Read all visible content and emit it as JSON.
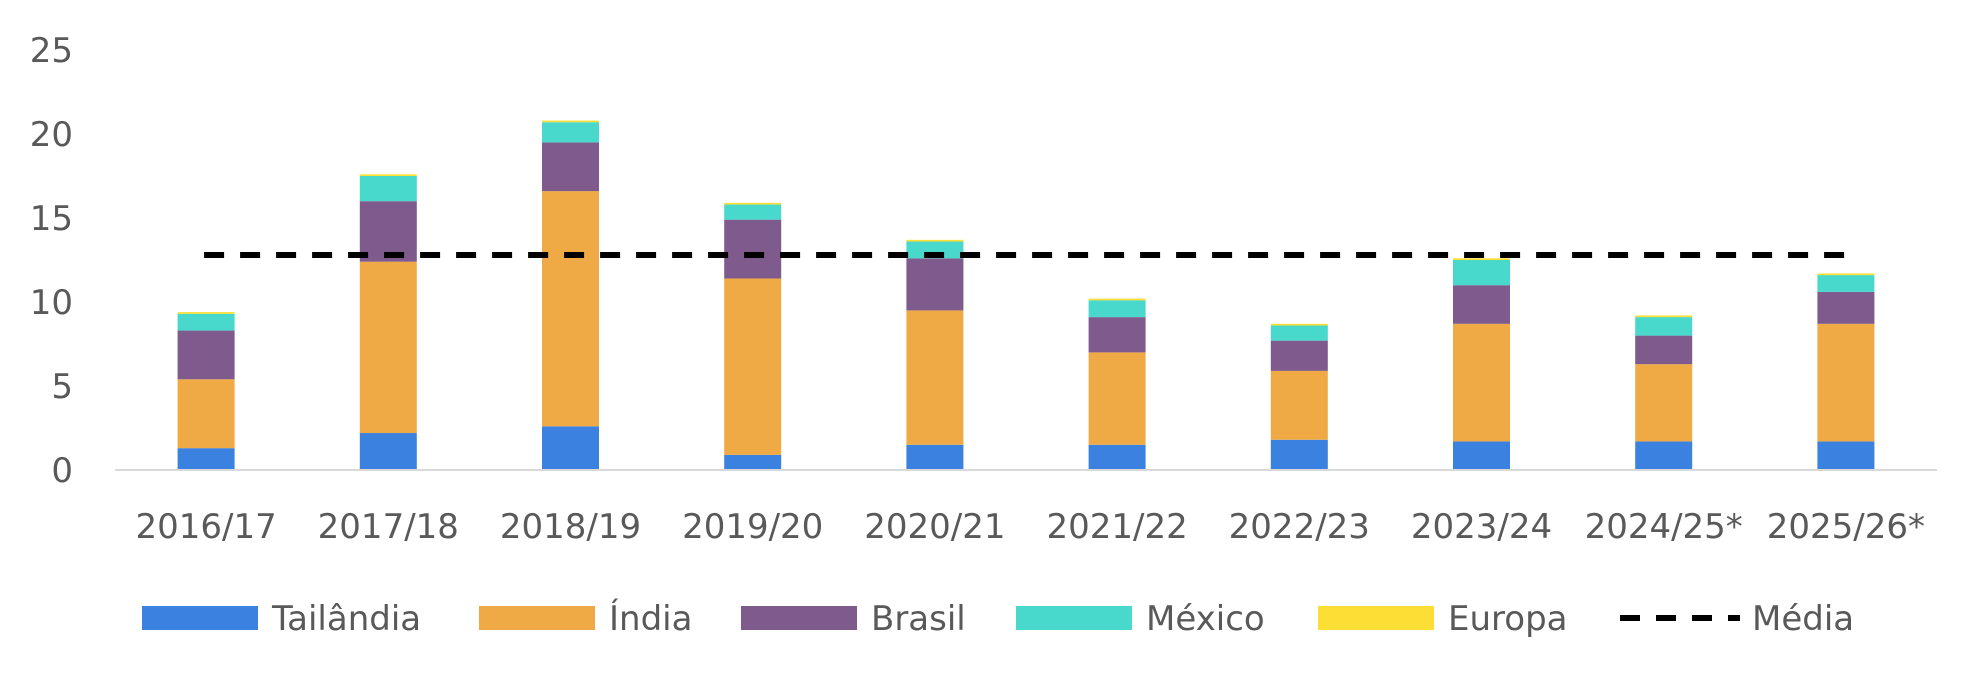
{
  "chart_data": {
    "type": "bar",
    "stacked": true,
    "categories": [
      "2016/17",
      "2017/18",
      "2018/19",
      "2019/20",
      "2020/21",
      "2021/22",
      "2022/23",
      "2023/24",
      "2024/25*",
      "2025/26*"
    ],
    "series": [
      {
        "name": "Tailândia",
        "color": "#3B82E0",
        "values": [
          1.3,
          2.2,
          2.6,
          0.9,
          1.5,
          1.5,
          1.8,
          1.7,
          1.7,
          1.7
        ]
      },
      {
        "name": "Índia",
        "color": "#EFAA45",
        "values": [
          4.1,
          10.2,
          14.0,
          10.5,
          8.0,
          5.5,
          4.1,
          7.0,
          4.6,
          7.0
        ]
      },
      {
        "name": "Brasil",
        "color": "#7F5A8C",
        "values": [
          2.9,
          3.6,
          2.9,
          3.5,
          3.1,
          2.1,
          1.8,
          2.3,
          1.7,
          1.9
        ]
      },
      {
        "name": "México",
        "color": "#49D8CC",
        "values": [
          1.0,
          1.5,
          1.2,
          0.9,
          1.0,
          1.0,
          0.9,
          1.5,
          1.1,
          1.0
        ]
      },
      {
        "name": "Europa",
        "color": "#FDDE35",
        "values": [
          0.1,
          0.1,
          0.1,
          0.1,
          0.1,
          0.1,
          0.1,
          0.1,
          0.1,
          0.1
        ]
      }
    ],
    "average": {
      "name": "Média",
      "value": 12.8,
      "color": "#000000"
    },
    "ylim": [
      0,
      25
    ],
    "yticks": [
      "0",
      "5",
      "10",
      "15",
      "20",
      "25"
    ],
    "title": "",
    "xlabel": "",
    "ylabel": "",
    "grid": false,
    "legend_position": "bottom"
  }
}
